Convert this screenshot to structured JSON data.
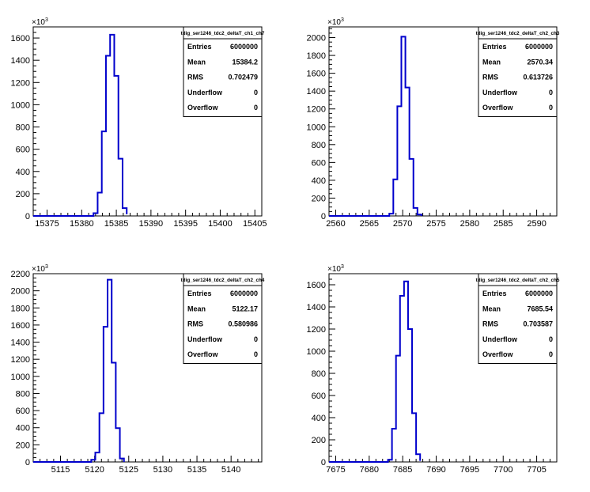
{
  "chart_data": [
    {
      "type": "histogram",
      "title": "tdig_ser1246_tdc2_deltaT_ch1_ch7",
      "xlim": [
        15373,
        15406
      ],
      "ylim": [
        0,
        1700
      ],
      "x_ticks": [
        15375,
        15380,
        15385,
        15390,
        15395,
        15400,
        15405
      ],
      "y_ticks": [
        0,
        200,
        400,
        600,
        800,
        1000,
        1200,
        1400,
        1600
      ],
      "y_multiplier": "×10",
      "y_multiplier_exp": "3",
      "line_color": "#0000cc",
      "bins": {
        "edges": [
          15381.7,
          15382.3,
          15382.9,
          15383.5,
          15384.1,
          15384.7,
          15385.3,
          15385.9,
          15386.5
        ],
        "values": [
          25,
          210,
          760,
          1440,
          1630,
          1260,
          515,
          70,
          15
        ]
      },
      "stats": [
        {
          "label": "Entries",
          "value": "6000000"
        },
        {
          "label": "Mean",
          "value": "15384.2"
        },
        {
          "label": "RMS",
          "value": "0.702479"
        },
        {
          "label": "Underflow",
          "value": "0"
        },
        {
          "label": "Overflow",
          "value": "0"
        }
      ]
    },
    {
      "type": "histogram",
      "title": "tdig_ser1246_tdc2_deltaT_ch2_ch3",
      "xlim": [
        2559,
        2593
      ],
      "ylim": [
        0,
        2120
      ],
      "x_ticks": [
        2560,
        2565,
        2570,
        2575,
        2580,
        2585,
        2590
      ],
      "y_ticks": [
        0,
        200,
        400,
        600,
        800,
        1000,
        1200,
        1400,
        1600,
        1800,
        2000
      ],
      "y_multiplier": "×10",
      "y_multiplier_exp": "3",
      "line_color": "#0000cc",
      "bins": {
        "edges": [
          2568.0,
          2568.6,
          2569.2,
          2569.8,
          2570.4,
          2571.0,
          2571.6,
          2572.2,
          2572.8
        ],
        "values": [
          25,
          410,
          1230,
          2010,
          1440,
          640,
          90,
          15,
          0
        ]
      },
      "stats": [
        {
          "label": "Entries",
          "value": "6000000"
        },
        {
          "label": "Mean",
          "value": "2570.34"
        },
        {
          "label": "RMS",
          "value": "0.613726"
        },
        {
          "label": "Underflow",
          "value": "0"
        },
        {
          "label": "Overflow",
          "value": "0"
        }
      ]
    },
    {
      "type": "histogram",
      "title": "tdig_ser1246_tdc2_deltaT_ch2_ch4",
      "xlim": [
        5111,
        5144.5
      ],
      "ylim": [
        0,
        2200
      ],
      "x_ticks": [
        5115,
        5120,
        5125,
        5130,
        5135,
        5140
      ],
      "y_ticks": [
        0,
        200,
        400,
        600,
        800,
        1000,
        1200,
        1400,
        1600,
        1800,
        2000,
        2200
      ],
      "y_multiplier": "×10",
      "y_multiplier_exp": "3",
      "line_color": "#0000cc",
      "bins": {
        "edges": [
          5119.5,
          5120.1,
          5120.7,
          5121.3,
          5121.9,
          5122.5,
          5123.1,
          5123.7,
          5124.3
        ],
        "values": [
          25,
          110,
          570,
          1580,
          2130,
          1160,
          395,
          40,
          0
        ]
      },
      "stats": [
        {
          "label": "Entries",
          "value": "6000000"
        },
        {
          "label": "Mean",
          "value": "5122.17"
        },
        {
          "label": "RMS",
          "value": "0.580986"
        },
        {
          "label": "Underflow",
          "value": "0"
        },
        {
          "label": "Overflow",
          "value": "0"
        }
      ]
    },
    {
      "type": "histogram",
      "title": "tdig_ser1246_tdc2_deltaT_ch2_ch5",
      "xlim": [
        7674,
        7708
      ],
      "ylim": [
        0,
        1700
      ],
      "x_ticks": [
        7675,
        7680,
        7685,
        7690,
        7695,
        7700,
        7705
      ],
      "y_ticks": [
        0,
        200,
        400,
        600,
        800,
        1000,
        1200,
        1400,
        1600
      ],
      "y_multiplier": "×10",
      "y_multiplier_exp": "3",
      "line_color": "#0000cc",
      "bins": {
        "edges": [
          7682.8,
          7683.4,
          7684.0,
          7684.6,
          7685.2,
          7685.8,
          7686.4,
          7687.0,
          7687.6
        ],
        "values": [
          20,
          300,
          960,
          1500,
          1630,
          1200,
          440,
          70,
          10
        ]
      },
      "stats": [
        {
          "label": "Entries",
          "value": "6000000"
        },
        {
          "label": "Mean",
          "value": "7685.54"
        },
        {
          "label": "RMS",
          "value": "0.703587"
        },
        {
          "label": "Underflow",
          "value": "0"
        },
        {
          "label": "Overflow",
          "value": "0"
        }
      ]
    }
  ]
}
